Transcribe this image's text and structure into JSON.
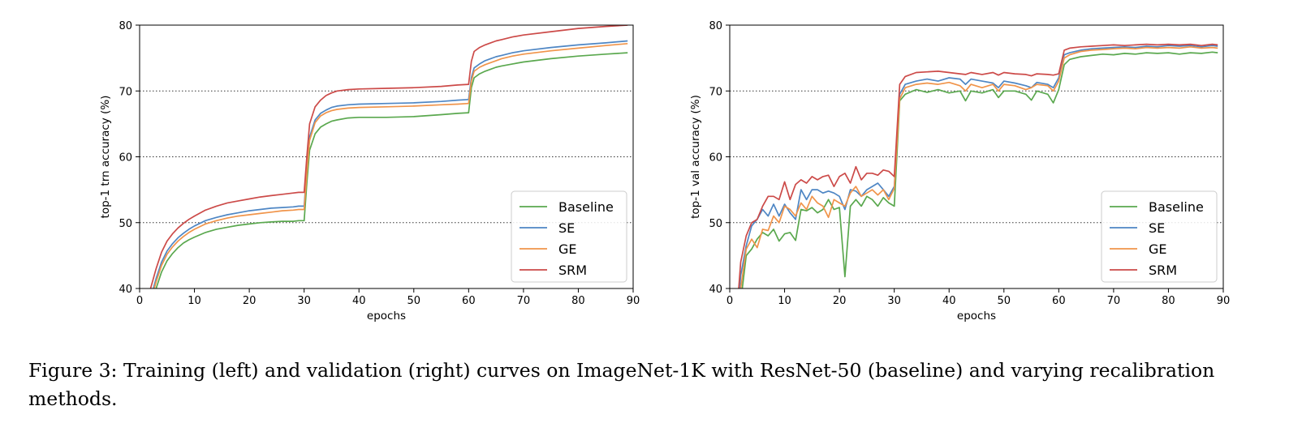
{
  "figure": {
    "caption": "Figure 3: Training (left) and validation (right) curves on ImageNet-1K with ResNet-50 (baseline) and varying recalibration methods."
  },
  "colors": {
    "Baseline": "#5aa84e",
    "SE": "#4e86c4",
    "GE": "#f0944a",
    "SRM": "#cc4a48",
    "grid": "#333333"
  },
  "chart_data": [
    {
      "type": "line",
      "title": "",
      "xlabel": "epochs",
      "ylabel": "top-1 trn accuracy (%)",
      "xlim": [
        0,
        90
      ],
      "ylim": [
        40,
        80
      ],
      "xticks": [
        0,
        10,
        20,
        30,
        40,
        50,
        60,
        70,
        80,
        90
      ],
      "yticks": [
        40,
        50,
        60,
        70,
        80
      ],
      "grid": "horizontal dotted",
      "legend": "lower-right",
      "series": [
        {
          "name": "Baseline",
          "x": [
            1,
            2,
            3,
            4,
            5,
            6,
            7,
            8,
            9,
            10,
            12,
            14,
            16,
            18,
            20,
            22,
            24,
            26,
            28,
            29,
            30,
            30.5,
            31,
            32,
            33,
            34,
            35,
            36,
            38,
            40,
            45,
            50,
            55,
            58,
            60,
            60.5,
            61,
            62,
            63,
            64,
            65,
            66,
            68,
            70,
            75,
            80,
            85,
            89
          ],
          "y": [
            34,
            37,
            40,
            42.5,
            44.2,
            45.3,
            46.2,
            46.9,
            47.4,
            47.8,
            48.5,
            49,
            49.3,
            49.6,
            49.8,
            50,
            50.1,
            50.2,
            50.2,
            50.3,
            50.3,
            56,
            61,
            63.5,
            64.5,
            65,
            65.4,
            65.6,
            65.9,
            66,
            66,
            66.1,
            66.4,
            66.6,
            66.7,
            70.5,
            72,
            72.6,
            73,
            73.3,
            73.6,
            73.8,
            74.1,
            74.4,
            74.9,
            75.3,
            75.6,
            75.8
          ]
        },
        {
          "name": "SE",
          "x": [
            1,
            2,
            3,
            4,
            5,
            6,
            7,
            8,
            9,
            10,
            12,
            14,
            16,
            18,
            20,
            22,
            24,
            26,
            28,
            29,
            30,
            30.5,
            31,
            32,
            33,
            34,
            35,
            36,
            38,
            40,
            45,
            50,
            55,
            58,
            60,
            60.5,
            61,
            62,
            63,
            64,
            65,
            66,
            68,
            70,
            75,
            80,
            85,
            89
          ],
          "y": [
            35,
            38.5,
            41.5,
            44,
            45.7,
            46.8,
            47.7,
            48.4,
            49,
            49.5,
            50.3,
            50.8,
            51.2,
            51.5,
            51.8,
            52,
            52.2,
            52.3,
            52.4,
            52.5,
            52.5,
            58,
            63,
            65.6,
            66.6,
            67.1,
            67.5,
            67.7,
            67.9,
            68,
            68.1,
            68.2,
            68.4,
            68.6,
            68.7,
            72,
            73.5,
            74.1,
            74.6,
            74.9,
            75.2,
            75.4,
            75.8,
            76.1,
            76.6,
            77,
            77.3,
            77.6
          ]
        },
        {
          "name": "GE",
          "x": [
            1,
            2,
            3,
            4,
            5,
            6,
            7,
            8,
            9,
            10,
            12,
            14,
            16,
            18,
            20,
            22,
            24,
            26,
            28,
            29,
            30,
            30.5,
            31,
            32,
            33,
            34,
            35,
            36,
            38,
            40,
            45,
            50,
            55,
            58,
            60,
            60.5,
            61,
            62,
            63,
            64,
            65,
            66,
            68,
            70,
            75,
            80,
            85,
            89
          ],
          "y": [
            35,
            38,
            41,
            43.5,
            45.2,
            46.3,
            47.2,
            47.9,
            48.5,
            49,
            49.8,
            50.3,
            50.7,
            51,
            51.2,
            51.4,
            51.6,
            51.8,
            51.9,
            52,
            52,
            57.5,
            62.5,
            65.2,
            66.2,
            66.7,
            67,
            67.2,
            67.4,
            67.5,
            67.6,
            67.7,
            67.9,
            68,
            68.1,
            71.5,
            73,
            73.6,
            74,
            74.3,
            74.6,
            74.9,
            75.3,
            75.6,
            76.1,
            76.5,
            76.9,
            77.2
          ]
        },
        {
          "name": "SRM",
          "x": [
            1,
            2,
            3,
            4,
            5,
            6,
            7,
            8,
            9,
            10,
            12,
            14,
            16,
            18,
            20,
            22,
            24,
            26,
            28,
            29,
            30,
            30.5,
            31,
            32,
            33,
            34,
            35,
            36,
            38,
            40,
            45,
            50,
            55,
            58,
            60,
            60.5,
            61,
            62,
            63,
            64,
            65,
            66,
            68,
            70,
            75,
            80,
            85,
            89
          ],
          "y": [
            36,
            40,
            43,
            45.5,
            47.2,
            48.3,
            49.2,
            49.9,
            50.5,
            51,
            51.9,
            52.5,
            53,
            53.3,
            53.6,
            53.9,
            54.1,
            54.3,
            54.5,
            54.6,
            54.6,
            60,
            65,
            67.6,
            68.6,
            69.3,
            69.7,
            70,
            70.2,
            70.3,
            70.4,
            70.5,
            70.7,
            70.9,
            71,
            74.5,
            76,
            76.6,
            77,
            77.3,
            77.6,
            77.8,
            78.2,
            78.5,
            79,
            79.5,
            79.8,
            80
          ]
        }
      ]
    },
    {
      "type": "line",
      "title": "",
      "xlabel": "epochs",
      "ylabel": "top-1 val accuracy (%)",
      "xlim": [
        0,
        90
      ],
      "ylim": [
        40,
        80
      ],
      "xticks": [
        0,
        10,
        20,
        30,
        40,
        50,
        60,
        70,
        80,
        90
      ],
      "yticks": [
        40,
        50,
        60,
        70,
        80
      ],
      "grid": "horizontal dotted",
      "legend": "lower-right",
      "series": [
        {
          "name": "Baseline",
          "x": [
            1,
            2,
            3,
            4,
            5,
            6,
            7,
            8,
            9,
            10,
            11,
            12,
            13,
            14,
            15,
            16,
            17,
            18,
            19,
            20,
            21,
            22,
            23,
            24,
            25,
            26,
            27,
            28,
            29,
            30,
            31,
            32,
            34,
            36,
            38,
            40,
            42,
            43,
            44,
            46,
            48,
            49,
            50,
            52,
            54,
            55,
            56,
            58,
            59,
            60,
            61,
            62,
            64,
            66,
            68,
            70,
            72,
            74,
            76,
            78,
            80,
            82,
            84,
            86,
            88,
            89
          ],
          "y": [
            30,
            38,
            45,
            46,
            47.5,
            48.5,
            48,
            49,
            47.2,
            48.3,
            48.5,
            47.3,
            52,
            51.8,
            52.3,
            51.5,
            52,
            53.5,
            52,
            52.3,
            41.8,
            52.5,
            53.5,
            52.5,
            54,
            53.5,
            52.5,
            53.8,
            53,
            52.5,
            68.5,
            69.5,
            70.2,
            69.8,
            70.2,
            69.7,
            70,
            68.5,
            70,
            69.7,
            70.2,
            69,
            70,
            70,
            69.5,
            68.6,
            70,
            69.5,
            68.2,
            70.2,
            74,
            74.8,
            75.2,
            75.4,
            75.6,
            75.5,
            75.7,
            75.6,
            75.8,
            75.7,
            75.8,
            75.6,
            75.8,
            75.7,
            75.9,
            75.8
          ]
        },
        {
          "name": "SE",
          "x": [
            1,
            2,
            3,
            4,
            5,
            6,
            7,
            8,
            9,
            10,
            11,
            12,
            13,
            14,
            15,
            16,
            17,
            18,
            19,
            20,
            21,
            22,
            23,
            24,
            25,
            26,
            27,
            28,
            29,
            30,
            31,
            32,
            34,
            36,
            38,
            40,
            42,
            43,
            44,
            46,
            48,
            49,
            50,
            52,
            54,
            55,
            56,
            58,
            59,
            60,
            61,
            62,
            64,
            66,
            68,
            70,
            72,
            74,
            76,
            78,
            80,
            82,
            84,
            86,
            88,
            89
          ],
          "y": [
            32,
            42,
            46.5,
            49.5,
            50.5,
            52,
            51,
            52.8,
            51,
            52.8,
            51.5,
            50.5,
            55,
            53.5,
            55,
            55,
            54.5,
            54.8,
            54.5,
            54,
            52,
            55,
            54.8,
            54,
            55,
            55.5,
            56,
            55,
            54,
            55.5,
            69.5,
            71,
            71.5,
            71.8,
            71.5,
            72,
            71.8,
            71,
            71.8,
            71.5,
            71.2,
            70.5,
            71.5,
            71.2,
            70.8,
            70.5,
            71.3,
            71,
            70.5,
            72,
            75.5,
            75.8,
            76.2,
            76.4,
            76.5,
            76.6,
            76.7,
            76.6,
            76.8,
            76.7,
            76.9,
            76.8,
            76.9,
            76.7,
            76.9,
            76.8
          ]
        },
        {
          "name": "GE",
          "x": [
            1,
            2,
            3,
            4,
            5,
            6,
            7,
            8,
            9,
            10,
            11,
            12,
            13,
            14,
            15,
            16,
            17,
            18,
            19,
            20,
            21,
            22,
            23,
            24,
            25,
            26,
            27,
            28,
            29,
            30,
            31,
            32,
            34,
            36,
            38,
            40,
            42,
            43,
            44,
            46,
            48,
            49,
            50,
            52,
            54,
            55,
            56,
            58,
            59,
            60,
            61,
            62,
            64,
            66,
            68,
            70,
            72,
            74,
            76,
            78,
            80,
            82,
            84,
            86,
            88,
            89
          ],
          "y": [
            31,
            40,
            46,
            47.5,
            46.2,
            49,
            48.8,
            51,
            50,
            52.5,
            52,
            51,
            53,
            52,
            54,
            53,
            52.5,
            50.8,
            53.5,
            53,
            52.5,
            54.5,
            55.5,
            54,
            54.5,
            55,
            54.2,
            55,
            53.5,
            55.2,
            68.8,
            70.5,
            71,
            71.2,
            71,
            71.3,
            70.8,
            70,
            71,
            70.5,
            71,
            70,
            71,
            70.8,
            70.2,
            70.5,
            71,
            70.8,
            70,
            71.5,
            75,
            75.5,
            76,
            76.2,
            76.3,
            76.4,
            76.5,
            76.4,
            76.6,
            76.5,
            76.6,
            76.5,
            76.7,
            76.5,
            76.6,
            76.5
          ]
        },
        {
          "name": "SRM",
          "x": [
            1,
            2,
            3,
            4,
            5,
            6,
            7,
            8,
            9,
            10,
            11,
            12,
            13,
            14,
            15,
            16,
            17,
            18,
            19,
            20,
            21,
            22,
            23,
            24,
            25,
            26,
            27,
            28,
            29,
            30,
            31,
            32,
            34,
            36,
            38,
            40,
            42,
            43,
            44,
            46,
            48,
            49,
            50,
            52,
            54,
            55,
            56,
            58,
            59,
            60,
            61,
            62,
            64,
            66,
            68,
            70,
            72,
            74,
            76,
            78,
            80,
            82,
            84,
            86,
            88,
            89
          ],
          "y": [
            33,
            44,
            48,
            50,
            50.5,
            52.5,
            54,
            54,
            53.5,
            56.2,
            53.5,
            55.8,
            56.5,
            56,
            57,
            56.5,
            57,
            57.2,
            55.5,
            57,
            57.5,
            56,
            58.5,
            56.5,
            57.5,
            57.5,
            57.2,
            58,
            57.8,
            57,
            71,
            72.2,
            72.8,
            72.9,
            73,
            72.8,
            72.6,
            72.5,
            72.8,
            72.5,
            72.8,
            72.4,
            72.8,
            72.6,
            72.5,
            72.3,
            72.6,
            72.5,
            72.4,
            72.6,
            76.2,
            76.5,
            76.7,
            76.8,
            76.9,
            77,
            76.9,
            77,
            77.1,
            77,
            77.1,
            77,
            77.1,
            76.9,
            77.1,
            77
          ]
        }
      ]
    }
  ]
}
